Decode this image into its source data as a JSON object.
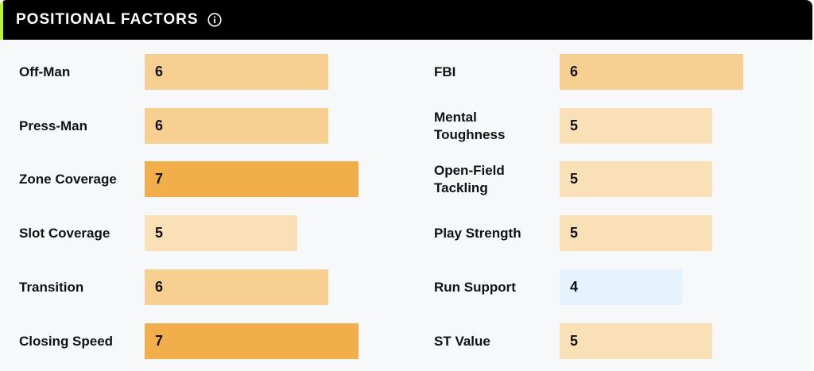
{
  "header": {
    "title": "POSITIONAL FACTORS",
    "info_icon": "info-icon"
  },
  "colors": {
    "header_bg": "#000000",
    "accent": "#b9f23a",
    "score_7": "#f2ae4b",
    "score_6": "#f7cf90",
    "score_5": "#fae0b6",
    "score_4": "#e6f2fc"
  },
  "factors_left": [
    {
      "label": "Off-Man",
      "value": "6"
    },
    {
      "label": "Press-Man",
      "value": "6"
    },
    {
      "label": "Zone Coverage",
      "value": "7"
    },
    {
      "label": "Slot Coverage",
      "value": "5"
    },
    {
      "label": "Transition",
      "value": "6"
    },
    {
      "label": "Closing Speed",
      "value": "7"
    }
  ],
  "factors_right": [
    {
      "label": "FBI",
      "value": "6"
    },
    {
      "label": "Mental Toughness",
      "value": "5"
    },
    {
      "label": "Open-Field Tackling",
      "value": "5"
    },
    {
      "label": "Play Strength",
      "value": "5"
    },
    {
      "label": "Run Support",
      "value": "4"
    },
    {
      "label": "ST Value",
      "value": "5"
    }
  ]
}
